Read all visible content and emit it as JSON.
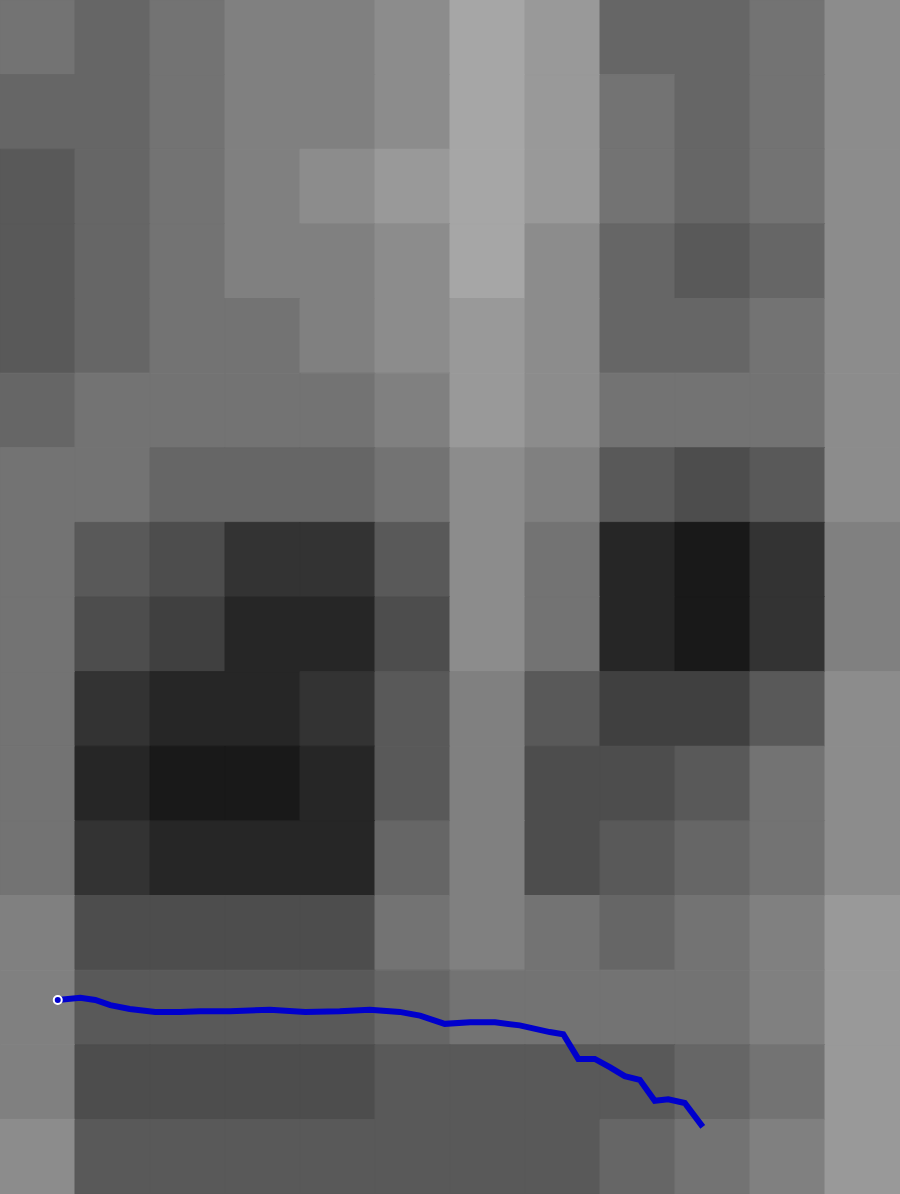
{
  "chart_data": {
    "type": "spectrogram",
    "xlim": [
      0,
      12
    ],
    "ylim": [
      0,
      16
    ],
    "tick_labels": false,
    "heatmap": {
      "x_edges": [
        0,
        1,
        2,
        3,
        4,
        5,
        6,
        7,
        8,
        9,
        10,
        11,
        12
      ],
      "y_edges": [
        16,
        15,
        14,
        13,
        12,
        11,
        10,
        9,
        8,
        7,
        6,
        5,
        4,
        3,
        2,
        1,
        0
      ],
      "color_range": [
        0,
        100
      ],
      "cells": [
        [
          55,
          60,
          55,
          50,
          50,
          45,
          35,
          40,
          60,
          60,
          55,
          45
        ],
        [
          60,
          60,
          55,
          50,
          50,
          45,
          35,
          40,
          55,
          60,
          55,
          45
        ],
        [
          65,
          60,
          55,
          50,
          45,
          40,
          35,
          40,
          55,
          60,
          55,
          45
        ],
        [
          65,
          60,
          55,
          50,
          50,
          45,
          35,
          45,
          60,
          65,
          60,
          45
        ],
        [
          65,
          60,
          55,
          55,
          50,
          45,
          40,
          45,
          60,
          60,
          55,
          45
        ],
        [
          60,
          55,
          55,
          55,
          55,
          50,
          40,
          45,
          55,
          55,
          55,
          45
        ],
        [
          55,
          55,
          60,
          60,
          60,
          55,
          45,
          50,
          65,
          70,
          65,
          45
        ],
        [
          55,
          65,
          70,
          80,
          80,
          65,
          45,
          55,
          85,
          90,
          80,
          50
        ],
        [
          55,
          70,
          75,
          85,
          85,
          70,
          45,
          55,
          85,
          90,
          80,
          50
        ],
        [
          55,
          80,
          85,
          85,
          80,
          65,
          50,
          65,
          75,
          75,
          65,
          45
        ],
        [
          55,
          85,
          90,
          90,
          85,
          65,
          50,
          70,
          70,
          65,
          55,
          45
        ],
        [
          55,
          80,
          85,
          85,
          85,
          60,
          50,
          70,
          65,
          60,
          55,
          45
        ],
        [
          50,
          70,
          70,
          70,
          70,
          55,
          50,
          55,
          60,
          55,
          50,
          40
        ],
        [
          50,
          65,
          65,
          65,
          65,
          60,
          55,
          55,
          55,
          55,
          50,
          40
        ],
        [
          50,
          70,
          70,
          70,
          70,
          65,
          65,
          65,
          65,
          60,
          55,
          40
        ],
        [
          45,
          65,
          65,
          65,
          65,
          65,
          65,
          65,
          60,
          55,
          50,
          40
        ]
      ]
    },
    "series": [
      {
        "type": "line",
        "color": "#0000cc",
        "x": [
          0.77,
          1.07,
          1.27,
          1.47,
          1.73,
          2.07,
          2.4,
          2.67,
          3.07,
          3.6,
          4.07,
          4.53,
          4.93,
          5.33,
          5.6,
          5.93,
          6.27,
          6.6,
          6.93,
          7.33,
          7.51,
          7.71,
          7.93,
          8.13,
          8.33,
          8.53,
          8.73,
          8.91,
          9.13,
          9.37
        ],
        "values": [
          2.6,
          2.63,
          2.6,
          2.53,
          2.48,
          2.44,
          2.44,
          2.45,
          2.45,
          2.47,
          2.44,
          2.45,
          2.47,
          2.44,
          2.39,
          2.28,
          2.3,
          2.3,
          2.26,
          2.17,
          2.14,
          1.81,
          1.81,
          1.7,
          1.58,
          1.53,
          1.25,
          1.27,
          1.22,
          0.9
        ]
      }
    ]
  }
}
